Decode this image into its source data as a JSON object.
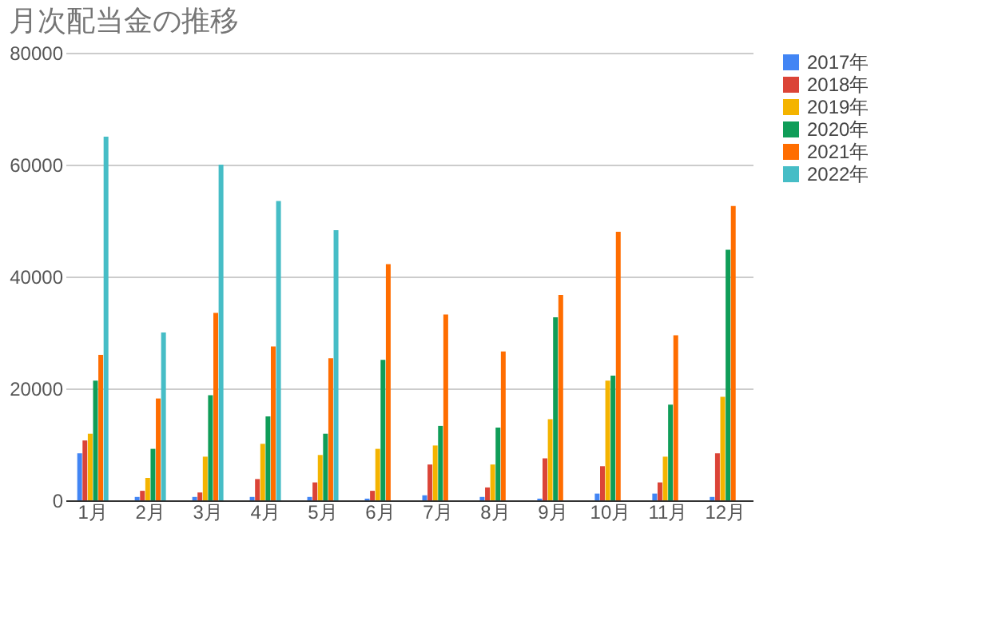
{
  "chart_data": {
    "type": "bar",
    "title": "月次配当金の推移",
    "categories": [
      "1月",
      "2月",
      "3月",
      "4月",
      "5月",
      "6月",
      "7月",
      "8月",
      "9月",
      "10月",
      "11月",
      "12月"
    ],
    "series": [
      {
        "name": "2017年",
        "color": "#4285f4",
        "values": [
          8400,
          600,
          600,
          600,
          600,
          300,
          900,
          600,
          300,
          1200,
          1200,
          600
        ]
      },
      {
        "name": "2018年",
        "color": "#db4437",
        "values": [
          10700,
          1700,
          1400,
          3800,
          3200,
          1700,
          6400,
          2300,
          7500,
          6100,
          3200,
          8400
        ]
      },
      {
        "name": "2019年",
        "color": "#f4b400",
        "values": [
          11900,
          4000,
          7800,
          10100,
          8100,
          9200,
          9800,
          6400,
          14500,
          21400,
          7800,
          18500
        ]
      },
      {
        "name": "2020年",
        "color": "#0f9d58",
        "values": [
          21400,
          9200,
          18800,
          15000,
          11900,
          25100,
          13300,
          13000,
          32700,
          22300,
          17100,
          44800
        ]
      },
      {
        "name": "2021年",
        "color": "#ff6d00",
        "values": [
          26000,
          18200,
          33500,
          27500,
          25400,
          42200,
          33200,
          26600,
          36700,
          48000,
          29500,
          52600
        ]
      },
      {
        "name": "2022年",
        "color": "#46bdc6",
        "values": [
          65000,
          30000,
          60000,
          53500,
          48300,
          null,
          null,
          null,
          null,
          null,
          null,
          null
        ]
      }
    ],
    "ylim": [
      0,
      80000
    ],
    "yticks": [
      0,
      20000,
      40000,
      60000,
      80000
    ],
    "grid": "y",
    "legend": "right"
  }
}
